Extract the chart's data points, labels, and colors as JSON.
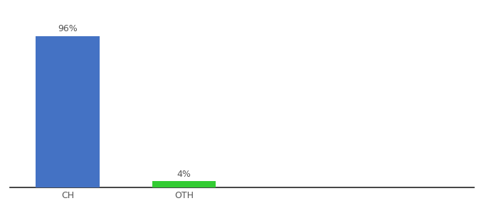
{
  "categories": [
    "CH",
    "OTH"
  ],
  "values": [
    96,
    4
  ],
  "bar_colors": [
    "#4472c4",
    "#33cc33"
  ],
  "value_labels": [
    "96%",
    "4%"
  ],
  "background_color": "#ffffff",
  "bar_width": 0.55,
  "xlim": [
    -0.5,
    3.5
  ],
  "ylim": [
    0,
    108
  ],
  "label_fontsize": 9,
  "tick_fontsize": 9,
  "tick_color": "#555555",
  "spine_color": "#222222",
  "bar_positions": [
    0.0,
    1.0
  ]
}
